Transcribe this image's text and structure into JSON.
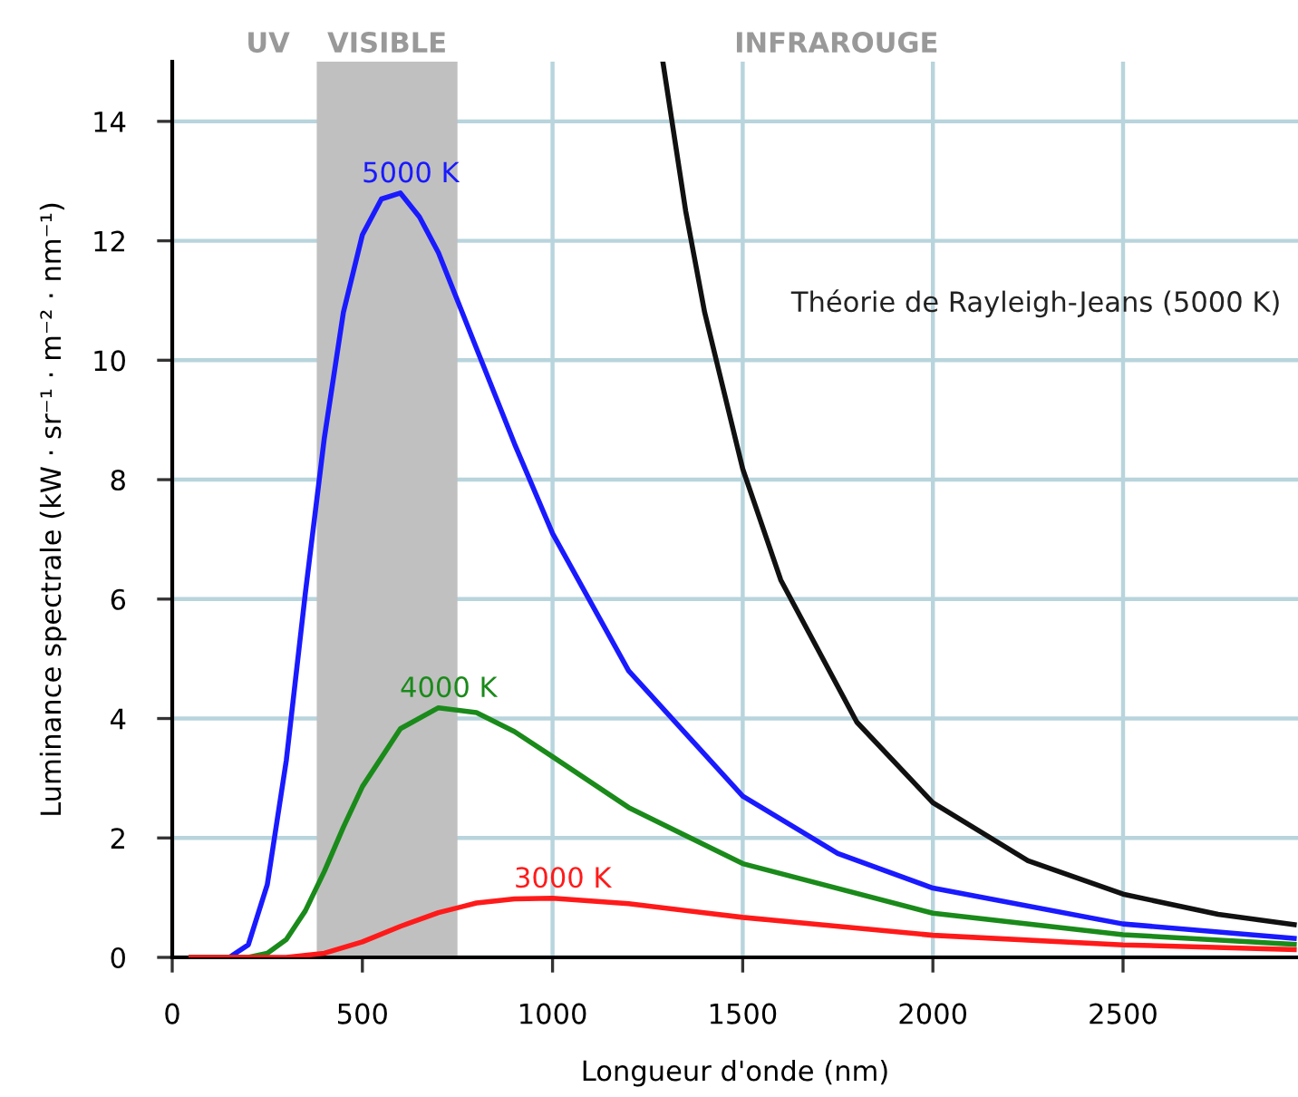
{
  "chart_data": {
    "type": "line",
    "xlabel": "Longueur d'onde (nm)",
    "ylabel": "Luminance spectrale (kW · sr⁻¹ · m⁻² · nm⁻¹)",
    "xlim": [
      0,
      2960
    ],
    "ylim": [
      0,
      15
    ],
    "xticks": [
      0,
      500,
      1000,
      1500,
      2000,
      2500
    ],
    "yticks": [
      0,
      2,
      4,
      6,
      8,
      10,
      12,
      14
    ],
    "grid": true,
    "legend": false,
    "marker": "none",
    "line_style": "solid",
    "annotations": [
      "UV",
      "INFRAROUGE"
    ],
    "bands": [
      {
        "axis": "x",
        "from": 380,
        "to": 750,
        "label": "VISIBLE",
        "color": "#c0c0c0"
      }
    ],
    "series": [
      {
        "name": "5000 K",
        "color": "#1a1aff",
        "x": [
          50,
          150,
          200,
          250,
          300,
          350,
          400,
          450,
          500,
          550,
          600,
          650,
          700,
          800,
          900,
          1000,
          1200,
          1500,
          1750,
          2000,
          2500,
          2950
        ],
        "values": [
          0,
          0,
          0.21,
          1.22,
          3.3,
          6.1,
          8.7,
          10.8,
          12.1,
          12.7,
          12.8,
          12.4,
          11.8,
          10.2,
          8.6,
          7.1,
          4.8,
          2.7,
          1.74,
          1.16,
          0.56,
          0.32
        ]
      },
      {
        "name": "4000 K",
        "color": "#1a8a1a",
        "x": [
          50,
          200,
          250,
          300,
          350,
          400,
          450,
          500,
          600,
          700,
          800,
          900,
          1000,
          1200,
          1500,
          2000,
          2500,
          2950
        ],
        "values": [
          0,
          0,
          0.07,
          0.3,
          0.78,
          1.44,
          2.18,
          2.86,
          3.83,
          4.18,
          4.1,
          3.78,
          3.36,
          2.51,
          1.57,
          0.74,
          0.38,
          0.22
        ]
      },
      {
        "name": "3000 K",
        "color": "#ff1a1a",
        "x": [
          50,
          300,
          400,
          500,
          600,
          700,
          800,
          900,
          1000,
          1200,
          1500,
          2000,
          2500,
          2950
        ],
        "values": [
          0,
          0,
          0.07,
          0.26,
          0.52,
          0.75,
          0.91,
          0.98,
          0.99,
          0.9,
          0.67,
          0.37,
          0.21,
          0.13
        ]
      },
      {
        "name": "Théorie de Rayleigh-Jeans (5000 K)",
        "color": "#111111",
        "x": [
          1290,
          1350,
          1400,
          1500,
          1600,
          1800,
          2000,
          2250,
          2500,
          2750,
          2950
        ],
        "values": [
          15.0,
          12.5,
          10.8,
          8.18,
          6.32,
          3.94,
          2.59,
          1.62,
          1.06,
          0.72,
          0.55
        ]
      }
    ]
  }
}
